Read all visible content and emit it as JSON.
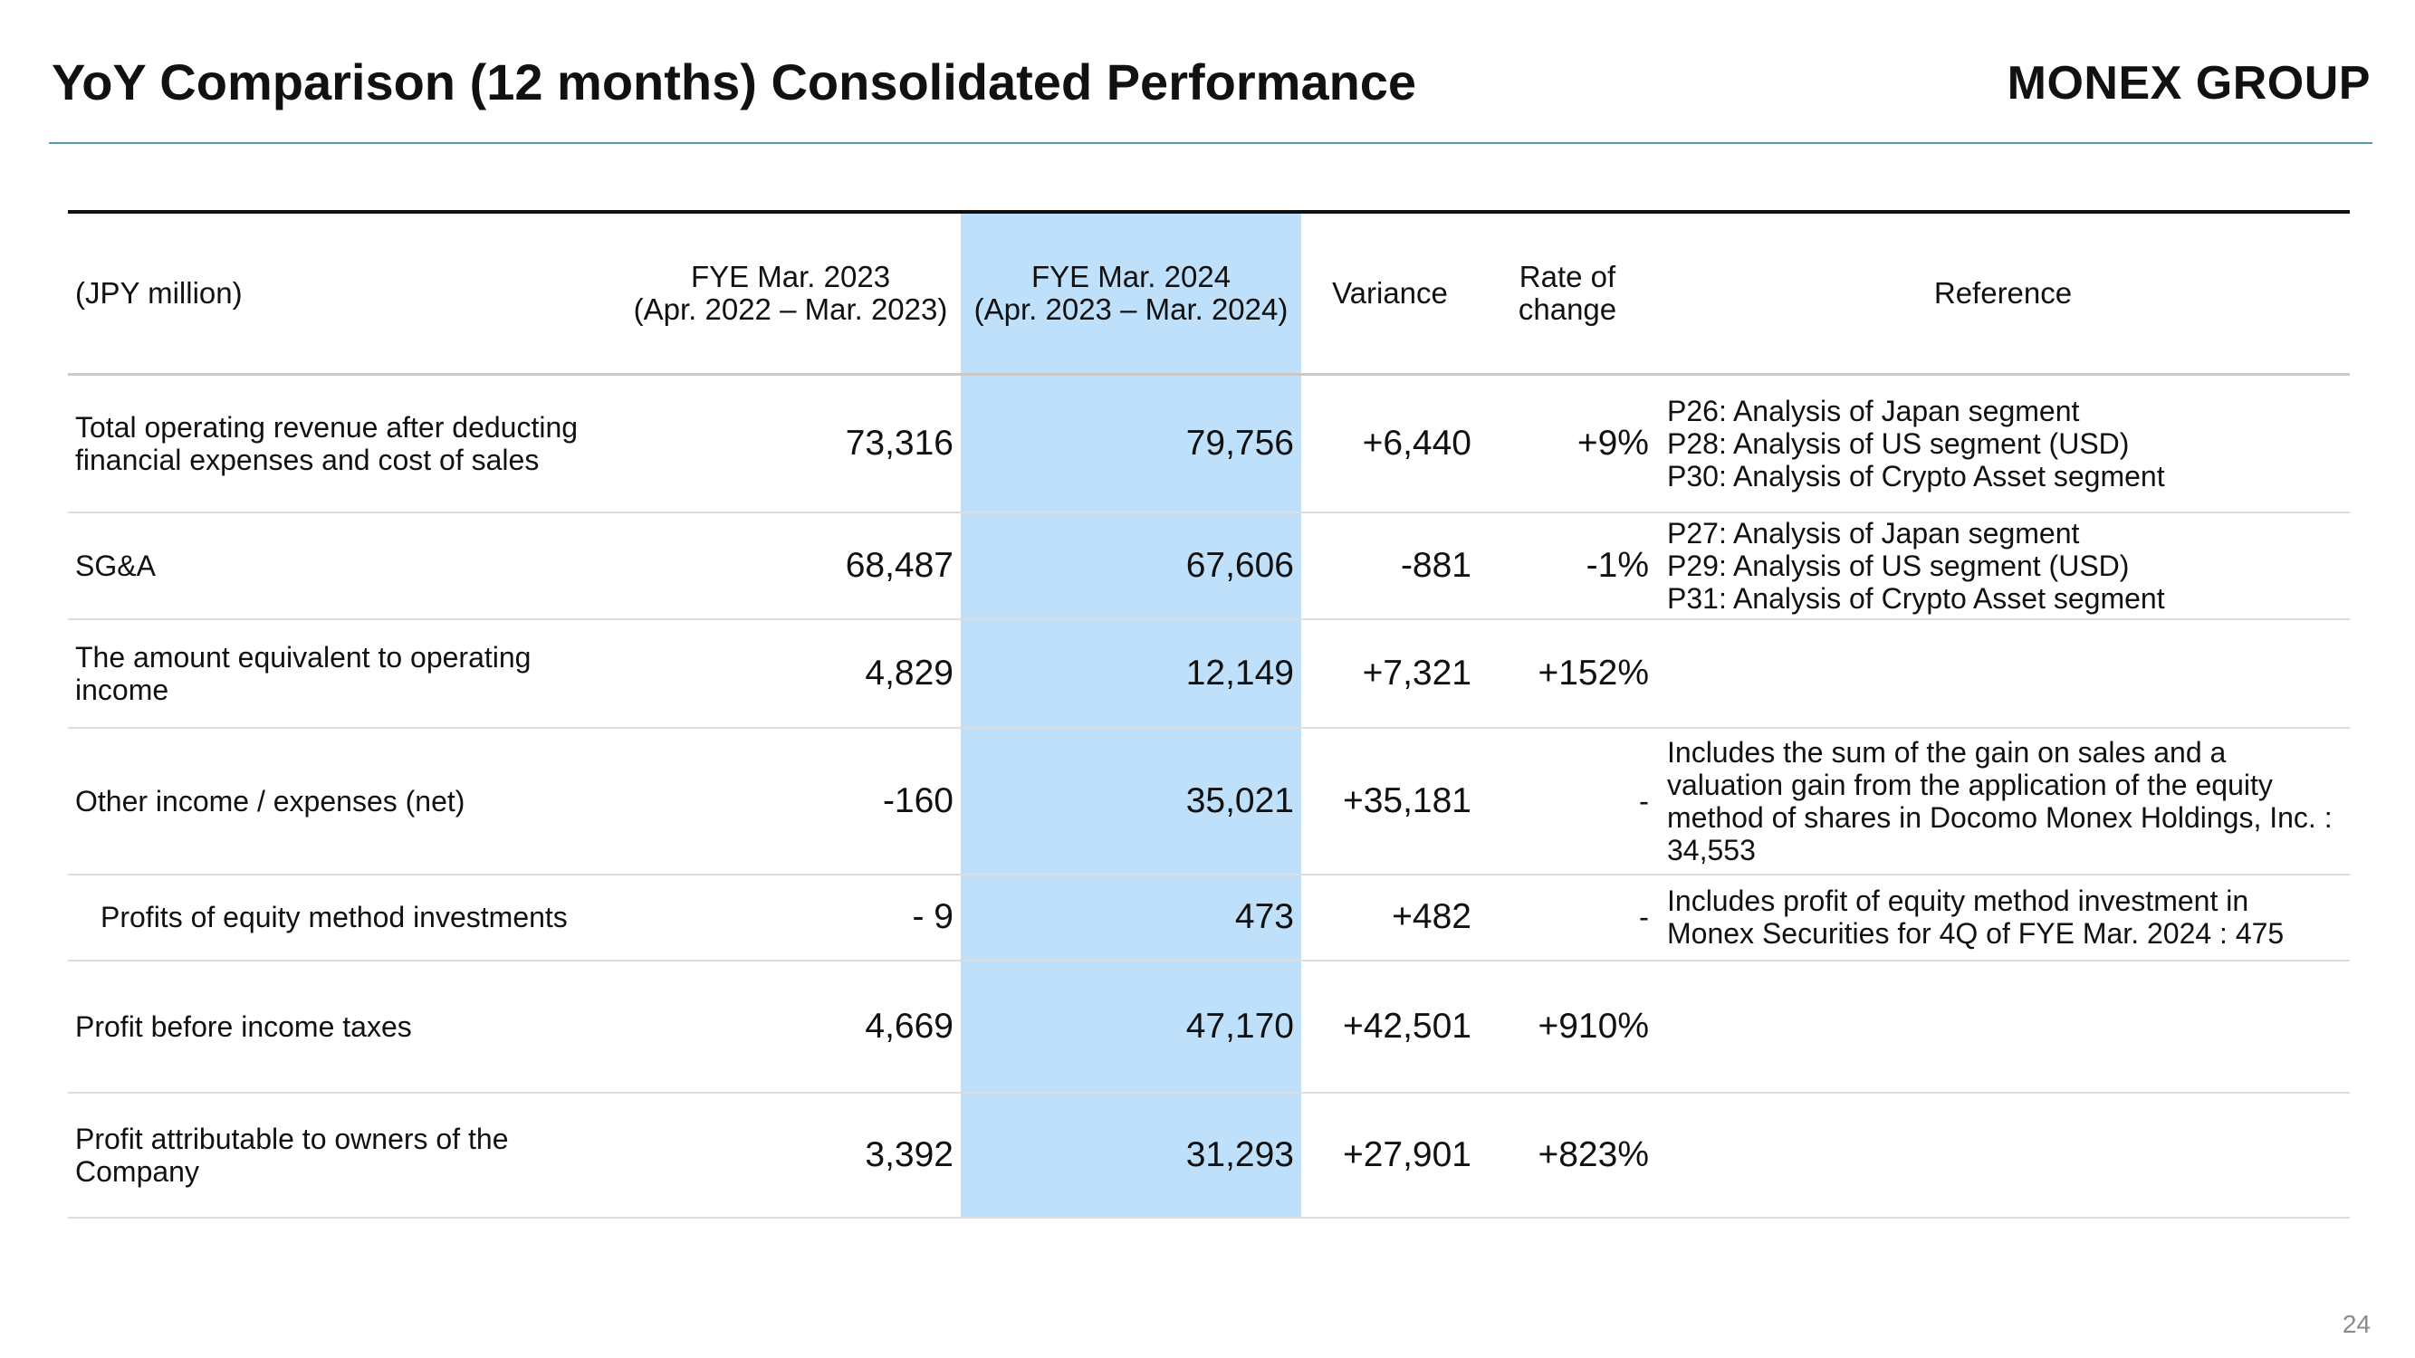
{
  "header": {
    "title": "YoY Comparison (12 months) Consolidated Performance",
    "logo_text": "MONEX GROUP"
  },
  "colors": {
    "highlight_column": "#bfe0fa",
    "title_rule": "#5b9aa8"
  },
  "table": {
    "columns": {
      "label": "(JPY million)",
      "fy2023_line1": "FYE Mar. 2023",
      "fy2023_line2": "(Apr. 2022 – Mar. 2023)",
      "fy2024_line1": "FYE Mar. 2024",
      "fy2024_line2": "(Apr. 2023 – Mar. 2024)",
      "variance": "Variance",
      "rate_line1": "Rate of",
      "rate_line2": "change",
      "reference": "Reference"
    },
    "rows": [
      {
        "label": "Total operating revenue after deducting financial expenses and cost of sales",
        "fy2023": "73,316",
        "fy2024": "79,756",
        "variance": "+6,440",
        "rate": "+9%",
        "ref": [
          "P26: Analysis of Japan segment",
          "P28: Analysis of US segment (USD)",
          "P30: Analysis of Crypto Asset segment"
        ]
      },
      {
        "label": "SG&A",
        "fy2023": "68,487",
        "fy2024": "67,606",
        "variance": "-881",
        "rate": "-1%",
        "ref": [
          "P27: Analysis of Japan segment",
          "P29: Analysis of US segment (USD)",
          "P31: Analysis of Crypto Asset segment"
        ]
      },
      {
        "label": "The amount equivalent to operating income",
        "fy2023": "4,829",
        "fy2024": "12,149",
        "variance": "+7,321",
        "rate": "+152%",
        "ref": []
      },
      {
        "label": "Other income / expenses (net)",
        "fy2023": "-160",
        "fy2024": "35,021",
        "variance": "+35,181",
        "rate": "-",
        "ref": [
          "Includes the sum of the gain on sales and a valuation gain from the application of the equity method of shares in Docomo Monex Holdings, Inc. : 34,553"
        ]
      },
      {
        "label": "Profits of equity method investments",
        "fy2023": "- 9",
        "fy2024": "473",
        "variance": "+482",
        "rate": "-",
        "ref": [
          "Includes profit of equity method investment in Monex Securities for 4Q of FYE Mar. 2024 : 475"
        ]
      },
      {
        "label": "Profit before income taxes",
        "fy2023": "4,669",
        "fy2024": "47,170",
        "variance": "+42,501",
        "rate": "+910%",
        "ref": []
      },
      {
        "label": "Profit attributable to owners of the Company",
        "fy2023": "3,392",
        "fy2024": "31,293",
        "variance": "+27,901",
        "rate": "+823%",
        "ref": []
      }
    ]
  },
  "footer": {
    "page_number": "24"
  }
}
